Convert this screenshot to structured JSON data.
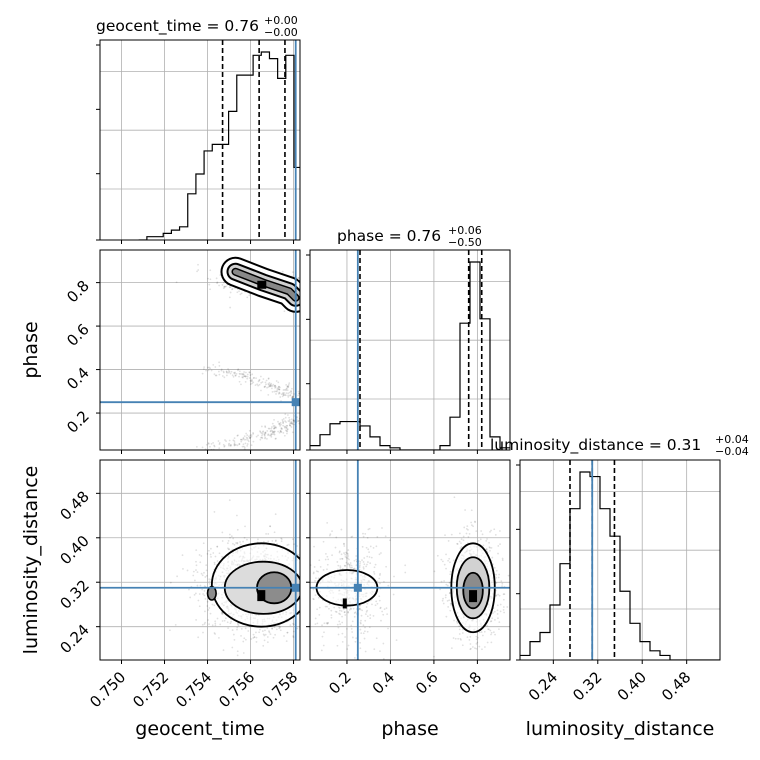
{
  "chart_data": {
    "type": "corner",
    "parameters": [
      "geocent_time",
      "phase",
      "luminosity_distance"
    ],
    "truth": {
      "geocent_time": 0.7581,
      "phase": 0.25,
      "luminosity_distance": 0.31
    },
    "truth_color": "#4682b4",
    "axes": {
      "geocent_time": {
        "label": "geocent_time",
        "range": [
          0.749,
          0.7583
        ],
        "ticks": [
          0.75,
          0.752,
          0.754,
          0.756,
          0.758
        ],
        "tick_labels": [
          "0.750",
          "0.752",
          "0.754",
          "0.756",
          "0.758"
        ]
      },
      "phase": {
        "label": "phase",
        "range": [
          0.03,
          0.95
        ],
        "ticks": [
          0.2,
          0.4,
          0.6,
          0.8
        ],
        "tick_labels": [
          "0.2",
          "0.4",
          "0.6",
          "0.8"
        ]
      },
      "luminosity_distance": {
        "label": "luminosity_distance",
        "range": [
          0.18,
          0.54
        ],
        "ticks": [
          0.24,
          0.32,
          0.4,
          0.48
        ],
        "tick_labels": [
          "0.24",
          "0.32",
          "0.40",
          "0.48"
        ]
      }
    },
    "titles": {
      "geocent_time": {
        "text": "geocent_time = 0.76",
        "plus": "+0.00",
        "minus": "−0.00"
      },
      "phase": {
        "text": "phase = 0.76",
        "plus": "+0.06",
        "minus": "−0.50"
      },
      "luminosity_distance": {
        "text": "luminosity_distance = 0.31",
        "plus": "+0.04",
        "minus": "−0.04"
      }
    },
    "histograms": {
      "geocent_time": {
        "bin_edges": [
          0.7508,
          0.75118,
          0.75156,
          0.75194,
          0.75232,
          0.7527,
          0.75308,
          0.75346,
          0.75384,
          0.75422,
          0.7546,
          0.75498,
          0.75536,
          0.75574,
          0.75612,
          0.7565,
          0.75688,
          0.75726,
          0.75764,
          0.75802,
          0.7584
        ],
        "counts": [
          0,
          1,
          1,
          2,
          3,
          4,
          14,
          20,
          27,
          29,
          29,
          39,
          50,
          50,
          56,
          57,
          55,
          49,
          56,
          22
        ],
        "quantiles": [
          0.7547,
          0.7564,
          0.7576
        ]
      },
      "phase": {
        "bin_edges": [
          0.03,
          0.076,
          0.122,
          0.168,
          0.214,
          0.26,
          0.306,
          0.352,
          0.398,
          0.444,
          0.49,
          0.536,
          0.582,
          0.628,
          0.674,
          0.72,
          0.766,
          0.812,
          0.858,
          0.904,
          0.95
        ],
        "counts": [
          2,
          7,
          12,
          13,
          13,
          11,
          6,
          2,
          1,
          0,
          0,
          0,
          0,
          2,
          15,
          58,
          86,
          60,
          6,
          1
        ],
        "quantiles": [
          0.26,
          0.76,
          0.82
        ]
      },
      "luminosity_distance": {
        "bin_edges": [
          0.18,
          0.198,
          0.216,
          0.234,
          0.252,
          0.27,
          0.288,
          0.306,
          0.324,
          0.342,
          0.36,
          0.378,
          0.396,
          0.414,
          0.432,
          0.45,
          0.468,
          0.486,
          0.504,
          0.522,
          0.54
        ],
        "counts": [
          1,
          4,
          6,
          12,
          21,
          33,
          41,
          40,
          33,
          27,
          15,
          8,
          4,
          2,
          1,
          0,
          0,
          0,
          0,
          0
        ],
        "quantiles": [
          0.27,
          0.31,
          0.35
        ]
      }
    }
  }
}
